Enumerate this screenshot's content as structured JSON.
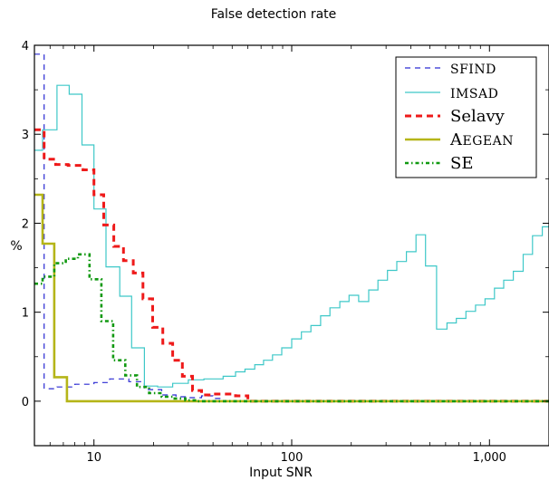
{
  "chart_data": {
    "type": "line",
    "title": "False detection rate",
    "xlabel": "Input SNR",
    "ylabel": "%",
    "xscale": "log",
    "xlim": [
      5.0,
      2000
    ],
    "ylim": [
      -0.5,
      4
    ],
    "x_ticks": [
      {
        "value": 10,
        "label": "10"
      },
      {
        "value": 100,
        "label": "100"
      },
      {
        "value": 1000,
        "label": "1,000"
      }
    ],
    "y_ticks": [
      {
        "value": 0,
        "label": "0"
      },
      {
        "value": 1,
        "label": "1"
      },
      {
        "value": 2,
        "label": "2"
      },
      {
        "value": 3,
        "label": "3"
      },
      {
        "value": 4,
        "label": "4"
      }
    ],
    "grid": false,
    "legend_position": "top-right",
    "step": true,
    "series": [
      {
        "name": "SFIND",
        "label_display": "SFIND",
        "label_style": "smallcaps",
        "color": "#2a2ad2",
        "dash": "dashed",
        "x": [
          5.0,
          5.6,
          6.5,
          8,
          10,
          12,
          15,
          18,
          22,
          26,
          30,
          35,
          40,
          45,
          2000
        ],
        "y": [
          3.9,
          0.14,
          0.16,
          0.19,
          0.21,
          0.25,
          0.22,
          0.13,
          0.07,
          0.05,
          0.04,
          0.06,
          0.03,
          0.0,
          0.0
        ]
      },
      {
        "name": "IMSAD",
        "label_display": "IMSAD",
        "label_style": "smallcaps",
        "color": "#3ec8c8",
        "dash": "solid",
        "x": [
          5.0,
          5.5,
          6.5,
          7.5,
          8.7,
          10,
          11.5,
          13.5,
          15.5,
          18,
          21,
          25,
          30,
          36,
          45,
          52,
          58,
          65,
          72,
          80,
          89,
          100,
          112,
          125,
          140,
          156,
          175,
          195,
          218,
          245,
          273,
          305,
          340,
          380,
          425,
          475,
          540,
          610,
          680,
          760,
          850,
          950,
          1060,
          1180,
          1320,
          1480,
          1650,
          1850,
          2000
        ],
        "y": [
          2.82,
          3.05,
          3.55,
          3.45,
          2.88,
          2.16,
          1.51,
          1.18,
          0.6,
          0.17,
          0.16,
          0.2,
          0.24,
          0.25,
          0.28,
          0.33,
          0.36,
          0.41,
          0.46,
          0.52,
          0.6,
          0.7,
          0.78,
          0.85,
          0.96,
          1.05,
          1.12,
          1.19,
          1.12,
          1.25,
          1.36,
          1.47,
          1.57,
          1.68,
          1.87,
          1.52,
          0.81,
          0.88,
          0.93,
          1.01,
          1.08,
          1.15,
          1.27,
          1.36,
          1.46,
          1.65,
          1.86,
          1.96,
          1.96
        ]
      },
      {
        "name": "Selavy",
        "label_display": "Selavy",
        "label_style": "normal",
        "color": "#ee1a1a",
        "dash": "bold-dashed",
        "x": [
          5.0,
          5.6,
          6.4,
          7.4,
          8.8,
          10,
          11.2,
          12.6,
          14.1,
          15.8,
          17.7,
          19.8,
          22.3,
          25,
          28,
          31.5,
          35,
          40,
          45,
          52,
          60,
          2000
        ],
        "y": [
          3.05,
          2.72,
          2.66,
          2.65,
          2.6,
          2.32,
          1.98,
          1.74,
          1.58,
          1.44,
          1.15,
          0.83,
          0.65,
          0.46,
          0.28,
          0.12,
          0.07,
          0.08,
          0.08,
          0.06,
          0.0,
          0.0
        ]
      },
      {
        "name": "Aegean",
        "label_display": "Aegean",
        "label_style": "smallcaps",
        "color": "#b5b518",
        "dash": "solid-thick",
        "x": [
          5.0,
          5.5,
          6.3,
          7.3,
          2000
        ],
        "y": [
          2.32,
          1.77,
          0.27,
          0.0,
          0.0
        ]
      },
      {
        "name": "SE",
        "label_display": "SE",
        "label_style": "normal",
        "color": "#119911",
        "dash": "dashdot",
        "x": [
          5.0,
          5.5,
          6.3,
          7.2,
          8.3,
          9.5,
          10.9,
          12.5,
          14.4,
          16.5,
          19,
          22,
          25,
          29,
          33,
          2000
        ],
        "y": [
          1.32,
          1.4,
          1.55,
          1.6,
          1.65,
          1.37,
          0.9,
          0.46,
          0.29,
          0.16,
          0.09,
          0.05,
          0.03,
          0.01,
          0.0,
          0.0
        ]
      }
    ]
  }
}
